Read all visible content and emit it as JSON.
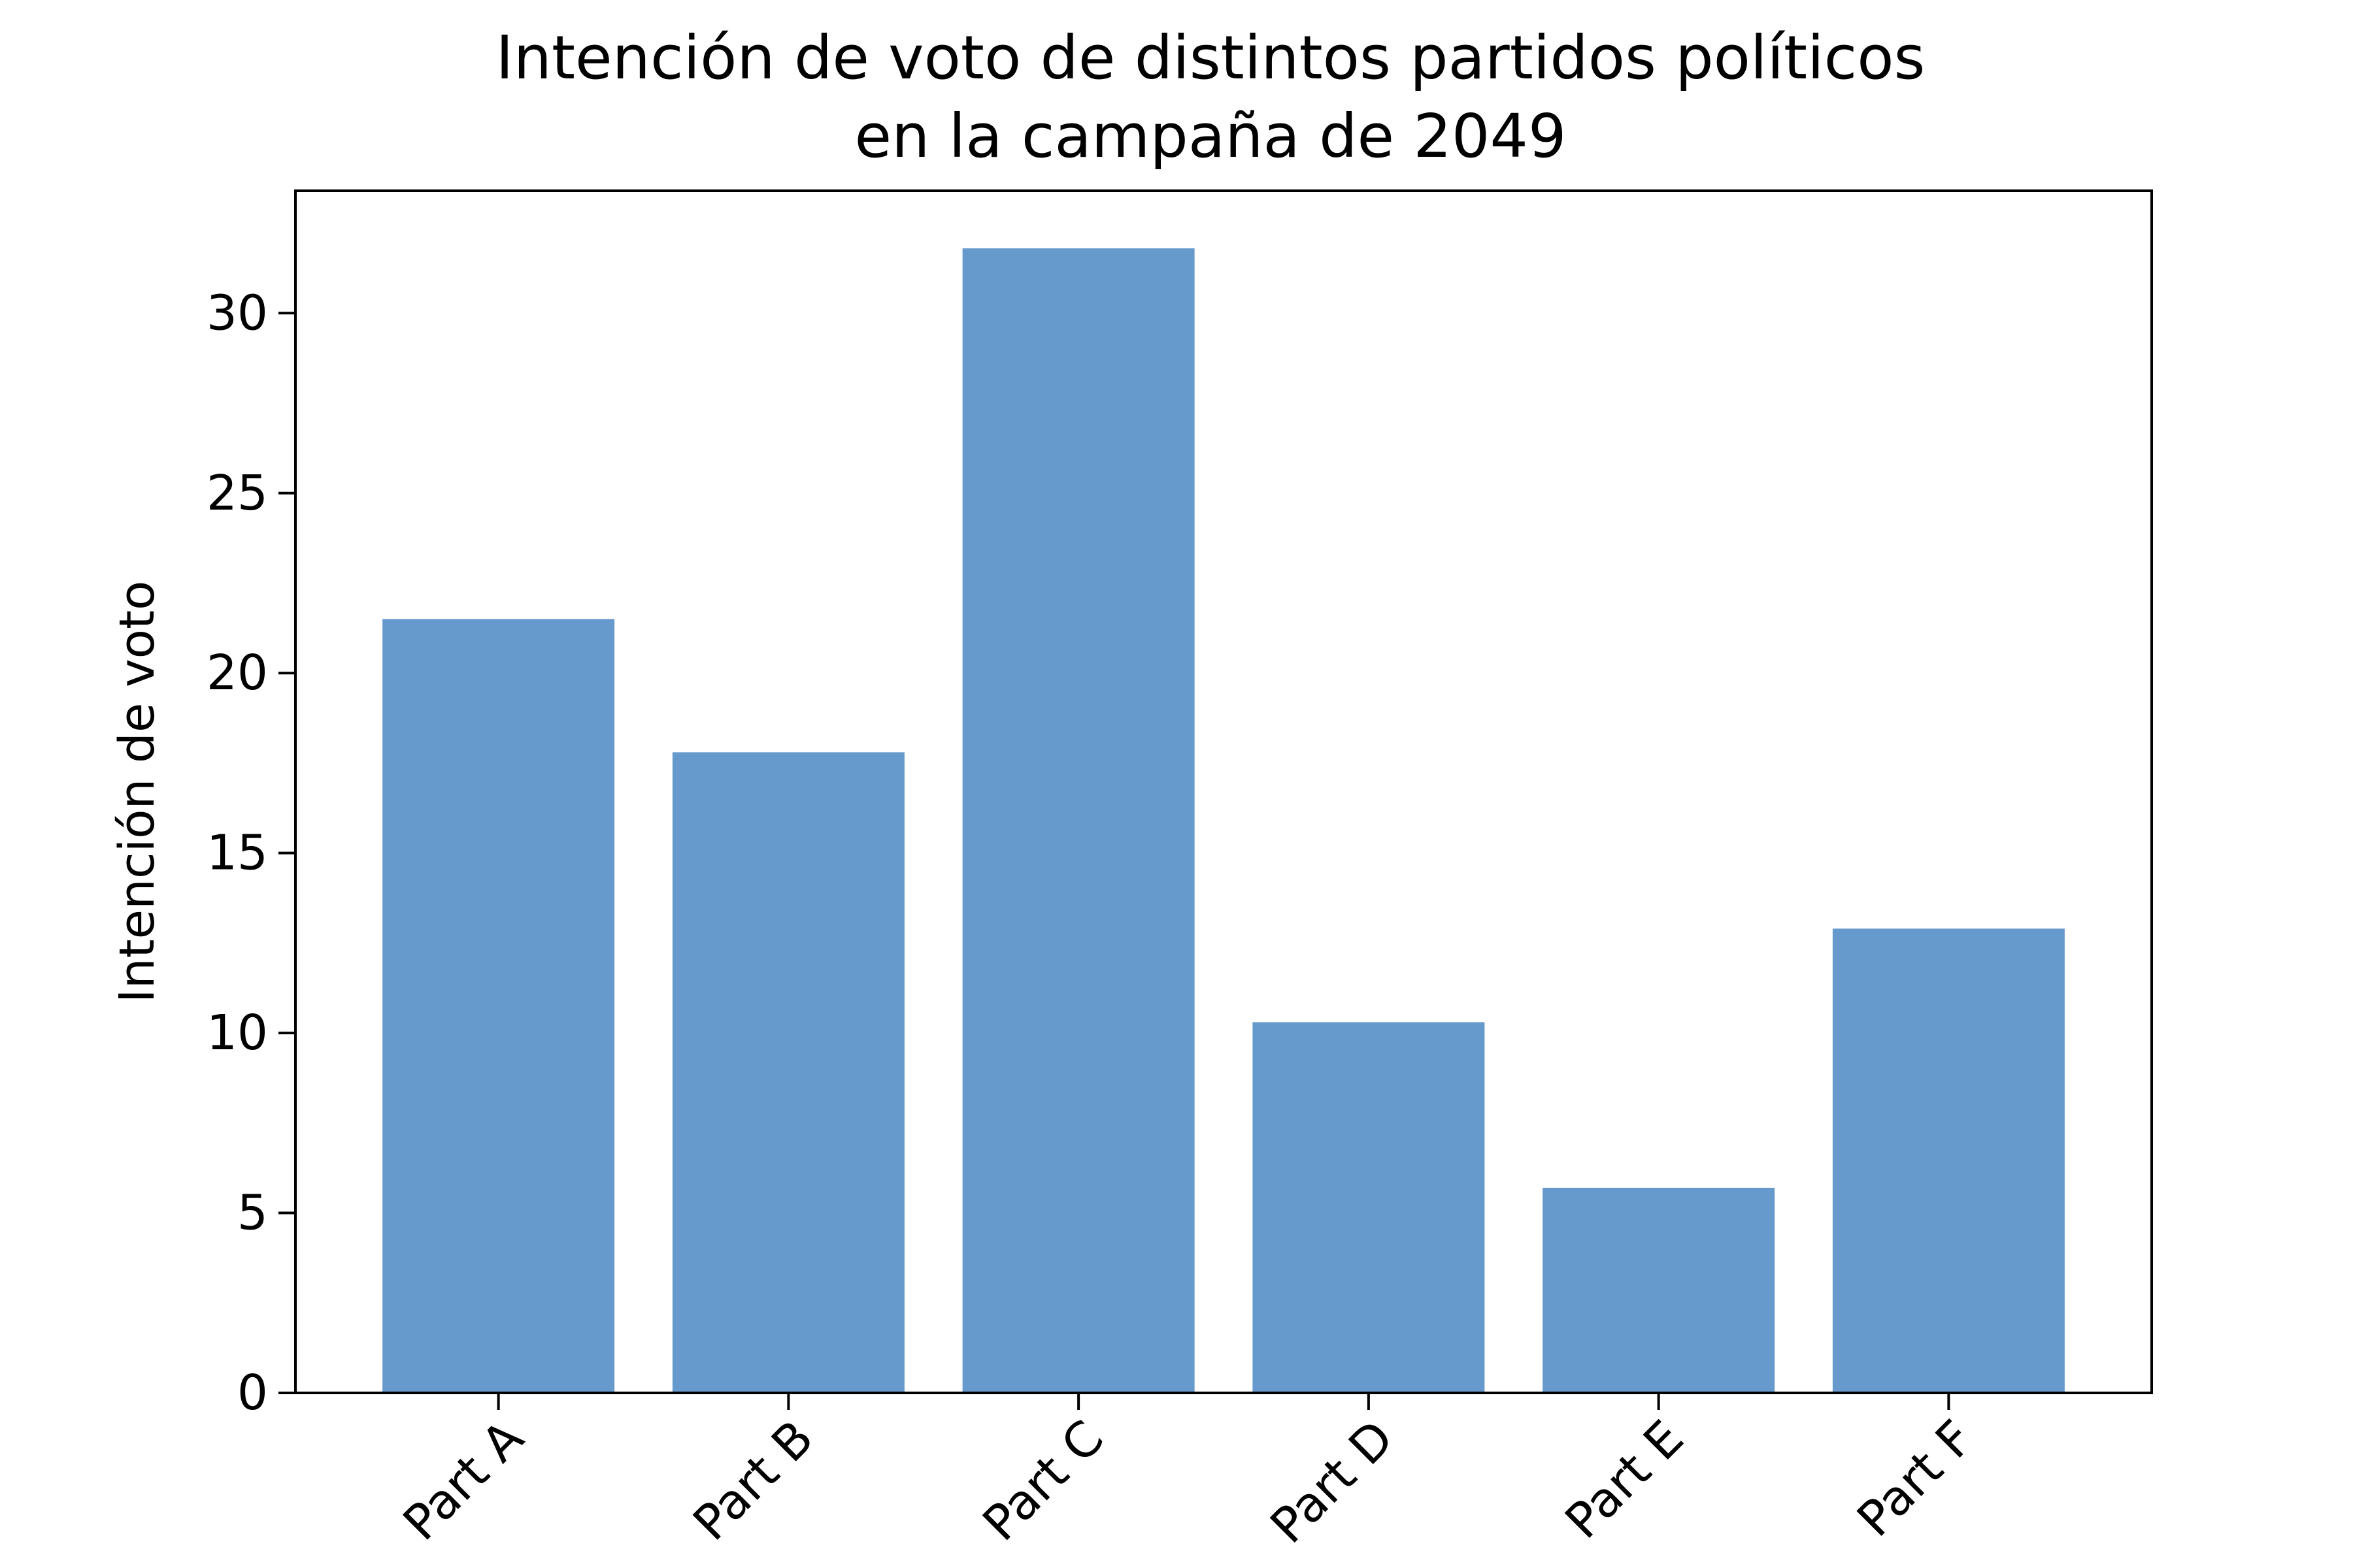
{
  "chart_data": {
    "type": "bar",
    "title": [
      "Intención de voto de distintos partidos políticos",
      "en la campaña de 2049"
    ],
    "xlabel": "",
    "ylabel": "Intención de voto",
    "categories": [
      "Part A",
      "Part B",
      "Part C",
      "Part D",
      "Part E",
      "Part F"
    ],
    "values": [
      21.5,
      17.8,
      31.8,
      10.3,
      5.7,
      12.9
    ],
    "ylim": [
      0,
      33.4
    ],
    "yticks": [
      0,
      5,
      10,
      15,
      20,
      25,
      30
    ],
    "xtick_rotation_deg": 45,
    "bar_color": "#6699cc",
    "grid": false,
    "legend": "none"
  }
}
